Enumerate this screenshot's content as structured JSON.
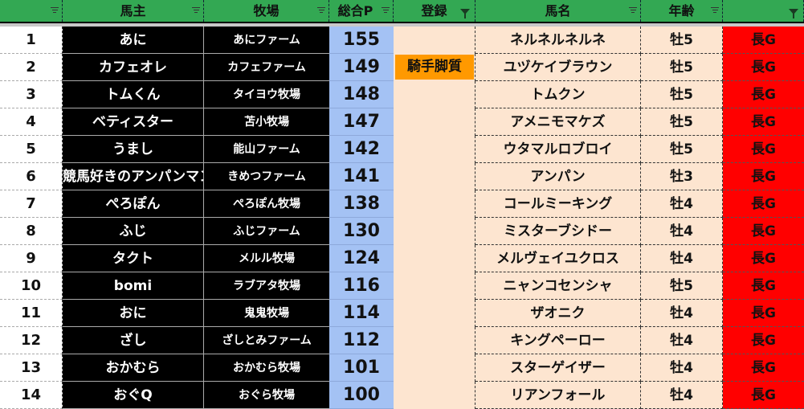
{
  "header": {
    "columns": [
      "",
      "馬主",
      "牧場",
      "総合P",
      "登録",
      "馬名",
      "年齢",
      ""
    ],
    "filter_active": [
      false,
      false,
      false,
      false,
      true,
      false,
      false,
      true
    ]
  },
  "colors": {
    "header": "#33a853",
    "owner_bg": "#000000",
    "points_bg": "#a4c2f4",
    "entry_bg": "#fde5d0",
    "highlight": "#ff9900",
    "distance_bg": "#ff0000"
  },
  "rows": [
    {
      "rank": "1",
      "owner": "あに",
      "farm": "あにファーム",
      "points": "155",
      "reg": "",
      "horse": "ネルネルネルネ",
      "age": "牡5",
      "dist": "長G"
    },
    {
      "rank": "2",
      "owner": "カフェオレ",
      "farm": "カフェファーム",
      "points": "149",
      "reg": "騎手脚質",
      "horse": "ユヅケイブラウン",
      "age": "牡5",
      "dist": "長G"
    },
    {
      "rank": "3",
      "owner": "トムくん",
      "farm": "タイヨウ牧場",
      "points": "148",
      "reg": "",
      "horse": "トムクン",
      "age": "牡5",
      "dist": "長G"
    },
    {
      "rank": "4",
      "owner": "ベティスター",
      "farm": "苫小牧場",
      "points": "147",
      "reg": "",
      "horse": "アメニモマケズ",
      "age": "牡5",
      "dist": "長G"
    },
    {
      "rank": "5",
      "owner": "うまし",
      "farm": "能山ファーム",
      "points": "142",
      "reg": "",
      "horse": "ウタマルロブロイ",
      "age": "牡5",
      "dist": "長G"
    },
    {
      "rank": "6",
      "owner": "競馬好きのアンパンマン",
      "farm": "きめつファーム",
      "points": "141",
      "reg": "",
      "horse": "アンパン",
      "age": "牡3",
      "dist": "長G"
    },
    {
      "rank": "7",
      "owner": "ぺろぽん",
      "farm": "ぺろぽん牧場",
      "points": "138",
      "reg": "",
      "horse": "コールミーキング",
      "age": "牡4",
      "dist": "長G"
    },
    {
      "rank": "8",
      "owner": "ふじ",
      "farm": "ふじファーム",
      "points": "130",
      "reg": "",
      "horse": "ミスターブシドー",
      "age": "牡4",
      "dist": "長G"
    },
    {
      "rank": "9",
      "owner": "タクト",
      "farm": "メルル牧場",
      "points": "124",
      "reg": "",
      "horse": "メルヴェイユクロス",
      "age": "牡4",
      "dist": "長G"
    },
    {
      "rank": "10",
      "owner": "bomi",
      "farm": "ラブアタ牧場",
      "points": "116",
      "reg": "",
      "horse": "ニャンコセンシャ",
      "age": "牡5",
      "dist": "長G"
    },
    {
      "rank": "11",
      "owner": "おに",
      "farm": "鬼鬼牧場",
      "points": "114",
      "reg": "",
      "horse": "ザオニク",
      "age": "牡4",
      "dist": "長G"
    },
    {
      "rank": "12",
      "owner": "ざし",
      "farm": "ざしとみファーム",
      "points": "112",
      "reg": "",
      "horse": "キングペーロー",
      "age": "牡4",
      "dist": "長G"
    },
    {
      "rank": "13",
      "owner": "おかむら",
      "farm": "おかむら牧場",
      "points": "101",
      "reg": "",
      "horse": "スターゲイザー",
      "age": "牡4",
      "dist": "長G"
    },
    {
      "rank": "14",
      "owner": "おぐQ",
      "farm": "おぐら牧場",
      "points": "100",
      "reg": "",
      "horse": "リアンフォール",
      "age": "牡4",
      "dist": "長G"
    }
  ]
}
